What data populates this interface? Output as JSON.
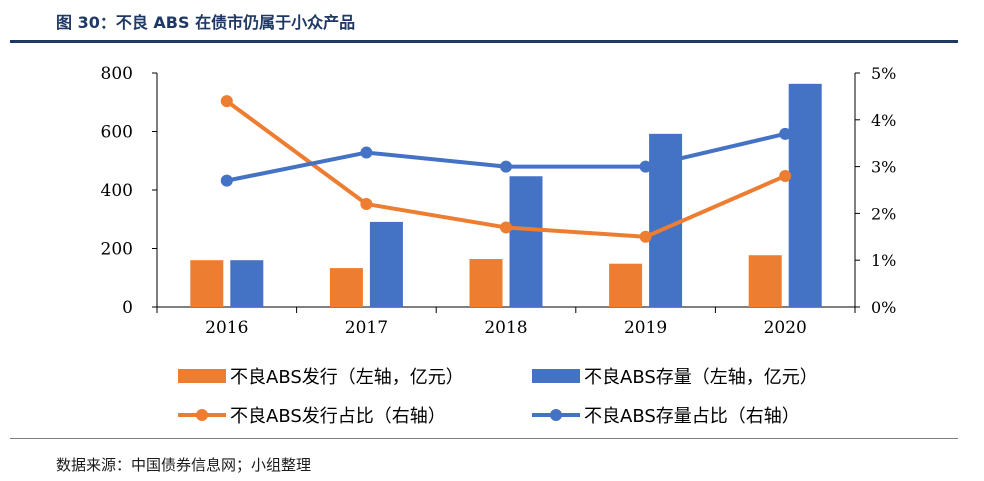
{
  "title": "图 30：不良 ABS 在债市仍属于小众产品",
  "source": "数据来源：中国债券信息网；小组整理",
  "colors": {
    "issuance": "#ed7d31",
    "outstanding": "#4472c4",
    "axis": "#000000"
  },
  "chart_data": {
    "type": "bar",
    "categories": [
      "2016",
      "2017",
      "2018",
      "2019",
      "2020"
    ],
    "series": [
      {
        "name": "不良ABS发行（左轴，亿元）",
        "type": "bar",
        "axis": "left",
        "color": "#ed7d31",
        "values": [
          160,
          133,
          164,
          148,
          177
        ]
      },
      {
        "name": "不良ABS存量（左轴，亿元）",
        "type": "bar",
        "axis": "left",
        "color": "#4472c4",
        "values": [
          160,
          291,
          447,
          592,
          763
        ]
      },
      {
        "name": "不良ABS发行占比（右轴）",
        "type": "line",
        "axis": "right",
        "color": "#ed7d31",
        "values": [
          4.4,
          2.2,
          1.7,
          1.5,
          2.8
        ]
      },
      {
        "name": "不良ABS存量占比（右轴）",
        "type": "line",
        "axis": "right",
        "color": "#4472c4",
        "values": [
          2.7,
          3.3,
          3.0,
          3.0,
          3.7
        ]
      }
    ],
    "y_left": {
      "min": 0,
      "max": 800,
      "ticks": [
        "0",
        "200",
        "400",
        "600",
        "800"
      ]
    },
    "y_right": {
      "min": 0,
      "max": 5,
      "ticks": [
        "0%",
        "1%",
        "2%",
        "3%",
        "4%",
        "5%"
      ]
    },
    "grid": false,
    "legend_position": "bottom"
  }
}
